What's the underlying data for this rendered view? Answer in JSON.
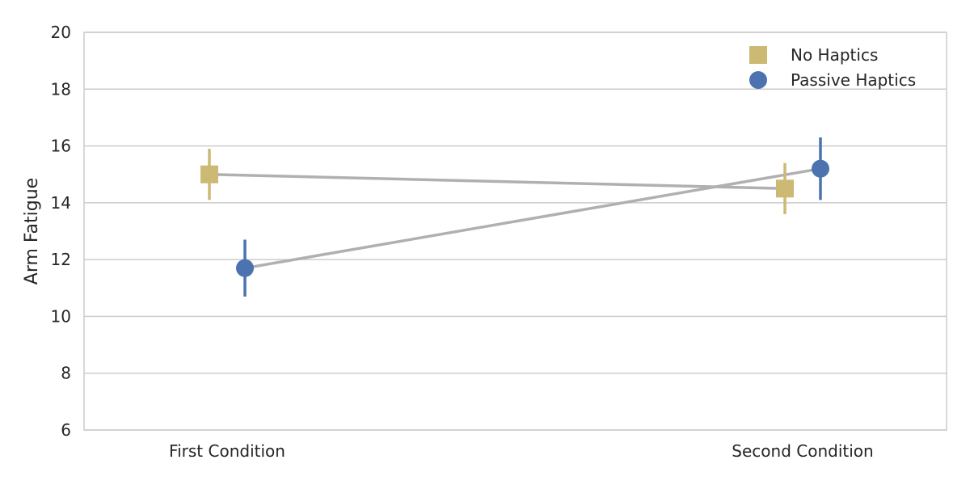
{
  "chart_data": {
    "type": "line",
    "title": "",
    "xlabel": "",
    "ylabel": "Arm Fatigue",
    "categories": [
      "First Condition",
      "Second Condition"
    ],
    "ylim": [
      6,
      20
    ],
    "yticks": [
      6,
      8,
      10,
      12,
      14,
      16,
      18,
      20
    ],
    "grid": "horizontal",
    "legend_position": "top-right",
    "series": [
      {
        "name": "No Haptics",
        "marker": "square",
        "color": "#ccb974",
        "values": [
          15.0,
          14.5
        ],
        "ci_low": [
          14.1,
          13.6
        ],
        "ci_high": [
          15.9,
          15.4
        ]
      },
      {
        "name": "Passive Haptics",
        "marker": "circle",
        "color": "#4c72b0",
        "values": [
          11.7,
          15.2
        ],
        "ci_low": [
          10.7,
          14.1
        ],
        "ci_high": [
          12.7,
          16.3
        ]
      }
    ],
    "line_color": "#b0b0b0"
  }
}
